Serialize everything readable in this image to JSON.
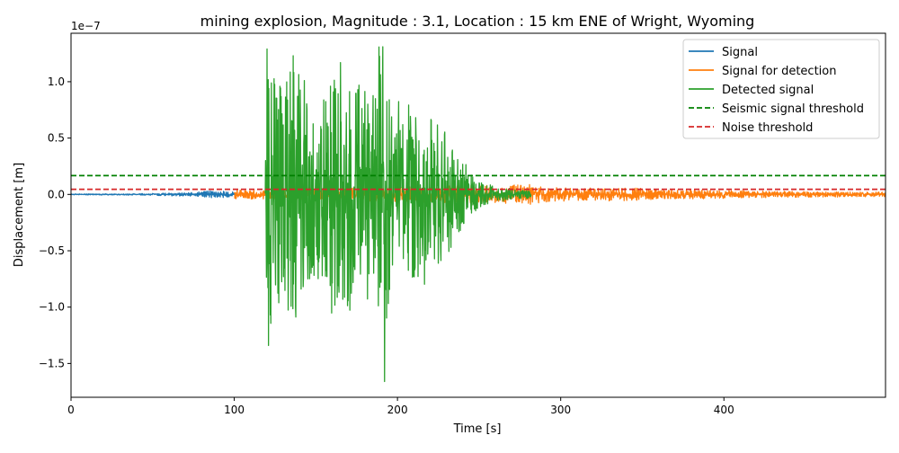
{
  "chart_data": {
    "type": "line",
    "title": "mining explosion, Magnitude : 3.1, Location : 15 km ENE of Wright, Wyoming",
    "xlabel": "Time [s]",
    "ylabel": "Displacement [m]",
    "y_scale_label": "1e−7",
    "y_scale": 1e-07,
    "xlim": [
      0,
      499
    ],
    "ylim": [
      -1.8,
      1.43
    ],
    "x_ticks": [
      0,
      100,
      200,
      300,
      400
    ],
    "x_tick_labels": [
      "0",
      "100",
      "200",
      "300",
      "400"
    ],
    "y_ticks": [
      -1.5,
      -1.0,
      -0.5,
      0.0,
      0.5,
      1.0
    ],
    "y_tick_labels": [
      "−1.5",
      "−1.0",
      "−0.5",
      "0.0",
      "0.5",
      "1.0"
    ],
    "grid": false,
    "legend_position": "top-right",
    "series": [
      {
        "name": "Signal",
        "color": "#1f77b4",
        "style": "solid",
        "x_range": [
          0,
          100
        ],
        "envelope": [
          [
            0,
            0.004
          ],
          [
            40,
            0.006
          ],
          [
            60,
            0.012
          ],
          [
            75,
            0.018
          ],
          [
            85,
            0.03
          ],
          [
            92,
            0.028
          ],
          [
            100,
            0.025
          ]
        ]
      },
      {
        "name": "Signal for detection",
        "color": "#ff7f0e",
        "style": "solid",
        "x_range": [
          100,
          499
        ],
        "envelope": [
          [
            100,
            0.04
          ],
          [
            119,
            0.04
          ],
          [
            280,
            0.09
          ],
          [
            290,
            0.07
          ],
          [
            310,
            0.055
          ],
          [
            340,
            0.06
          ],
          [
            350,
            0.055
          ],
          [
            360,
            0.045
          ],
          [
            400,
            0.035
          ],
          [
            450,
            0.025
          ],
          [
            499,
            0.02
          ]
        ]
      },
      {
        "name": "Detected signal",
        "color": "#2ca02c",
        "style": "solid",
        "x_range": [
          119,
          282
        ],
        "envelope": [
          [
            119,
            0.2
          ],
          [
            120,
            1.3
          ],
          [
            125,
            1.1
          ],
          [
            130,
            1.0
          ],
          [
            135,
            1.2
          ],
          [
            145,
            1.0
          ],
          [
            150,
            0.7
          ],
          [
            160,
            1.1
          ],
          [
            165,
            1.15
          ],
          [
            175,
            1.0
          ],
          [
            185,
            0.9
          ],
          [
            191,
            1.6
          ],
          [
            195,
            0.9
          ],
          [
            205,
            0.8
          ],
          [
            210,
            0.8
          ],
          [
            220,
            0.8
          ],
          [
            228,
            0.6
          ],
          [
            240,
            0.3
          ],
          [
            250,
            0.12
          ],
          [
            260,
            0.07
          ],
          [
            270,
            0.05
          ],
          [
            282,
            0.03
          ]
        ],
        "peaks": [
          [
            120,
            1.29
          ],
          [
            121,
            -1.34
          ],
          [
            136,
            1.23
          ],
          [
            141,
            -0.84
          ],
          [
            165,
            1.17
          ],
          [
            191,
            1.31
          ],
          [
            192,
            -1.66
          ]
        ]
      },
      {
        "name": "Seismic signal threshold",
        "color": "#008000",
        "style": "dashed",
        "y": 0.167
      },
      {
        "name": "Noise threshold",
        "color": "#d62728",
        "style": "dashed",
        "y": 0.045
      }
    ]
  }
}
